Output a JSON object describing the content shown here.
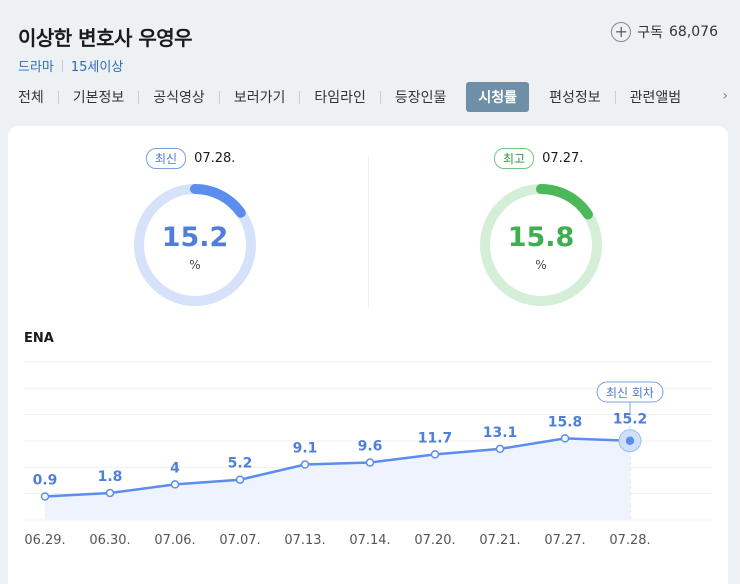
{
  "program": {
    "title": "이상한 변호사 우영우",
    "genre": "드라마",
    "rating": "15세이상"
  },
  "subscribe": {
    "label": "구독",
    "count": "68,076"
  },
  "tabs": [
    "전체",
    "기본정보",
    "공식영상",
    "보러가기",
    "타임라인",
    "등장인물",
    "시청률",
    "편성정보",
    "관련앨범"
  ],
  "active_tab": "시청률",
  "latest": {
    "badge": "최신",
    "date": "07.28.",
    "value": "15.2",
    "unit": "%",
    "color": "#5b8def"
  },
  "highest": {
    "badge": "최고",
    "date": "07.27.",
    "value": "15.8",
    "unit": "%",
    "color": "#4cb85a"
  },
  "network": "ENA",
  "chart_data": {
    "type": "line",
    "categories": [
      "06.29.",
      "06.30.",
      "07.06.",
      "07.07.",
      "07.13.",
      "07.14.",
      "07.20.",
      "07.21.",
      "07.27.",
      "07.28."
    ],
    "values": [
      0.9,
      1.8,
      4.0,
      5.2,
      9.1,
      9.6,
      11.7,
      13.1,
      15.8,
      15.2
    ],
    "annotation": "최신 회차",
    "grid": true,
    "line_color": "#5b8def"
  }
}
